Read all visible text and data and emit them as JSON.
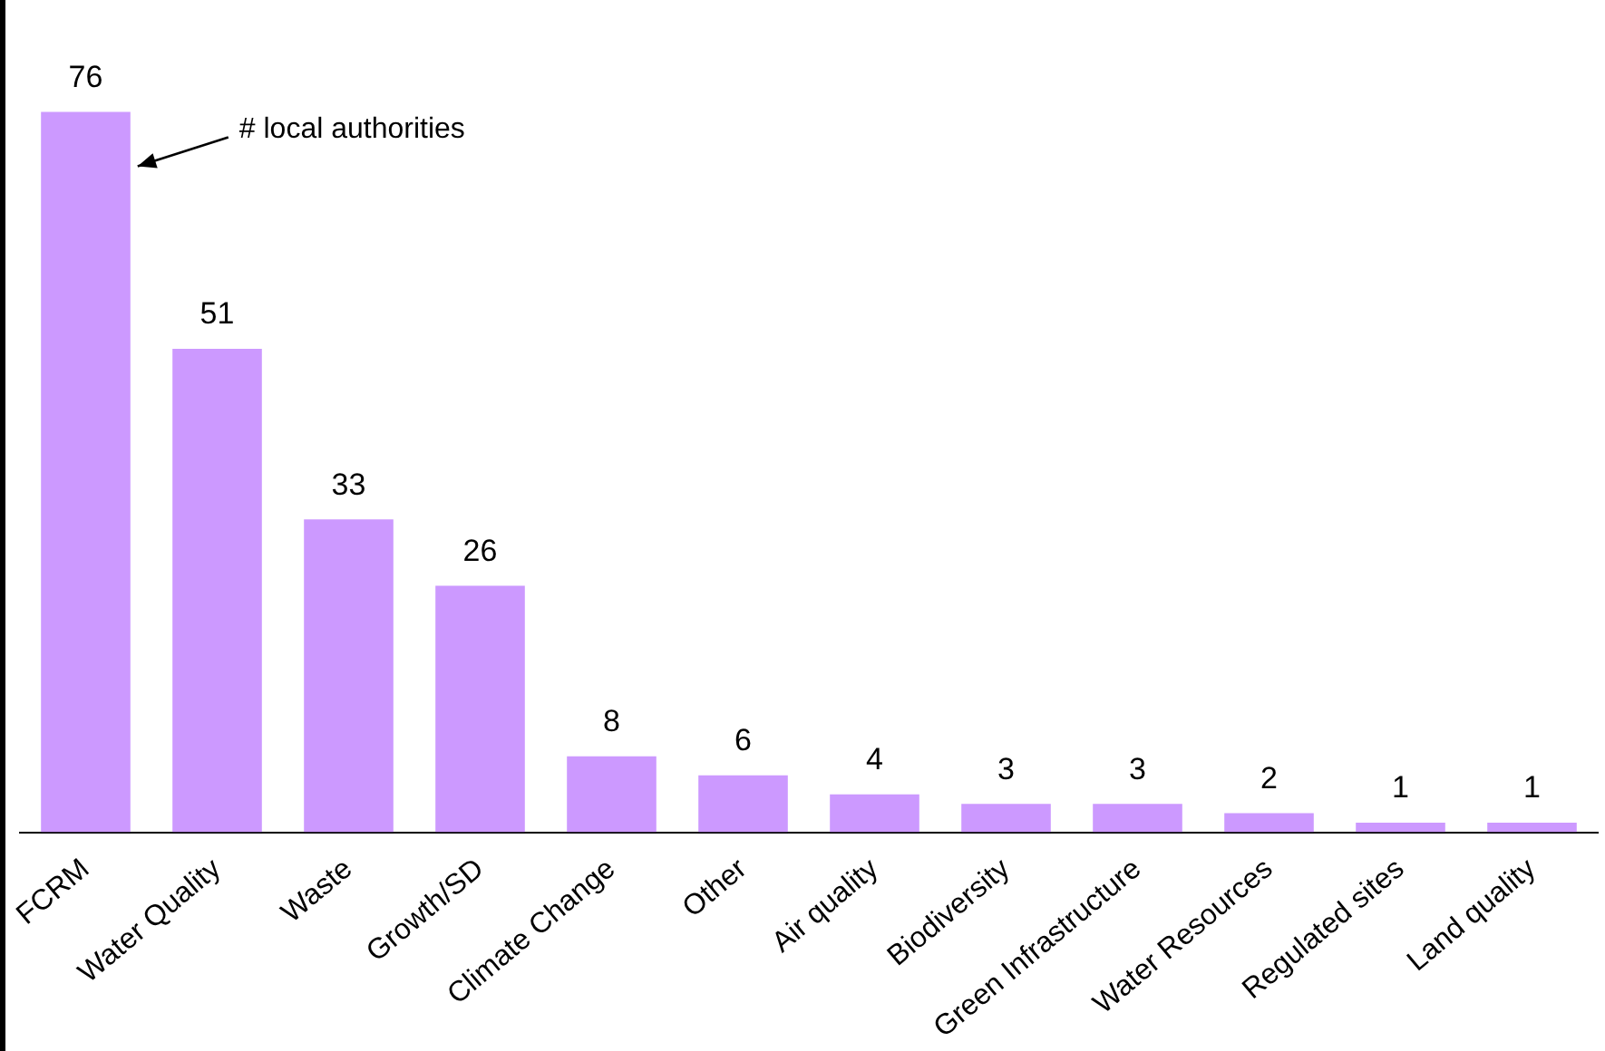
{
  "chart_data": {
    "type": "bar",
    "categories": [
      "FCRM",
      "Water Quality",
      "Waste",
      "Growth/SD",
      "Climate Change",
      "Other",
      "Air quality",
      "Biodiversity",
      "Green Infrastructure",
      "Water Resources",
      "Regulated sites",
      "Land quality"
    ],
    "values": [
      76,
      51,
      33,
      26,
      8,
      6,
      4,
      3,
      3,
      2,
      1,
      1
    ],
    "color": "#cc99ff",
    "data_labels": true,
    "annotations": [
      "# local authorities"
    ]
  }
}
